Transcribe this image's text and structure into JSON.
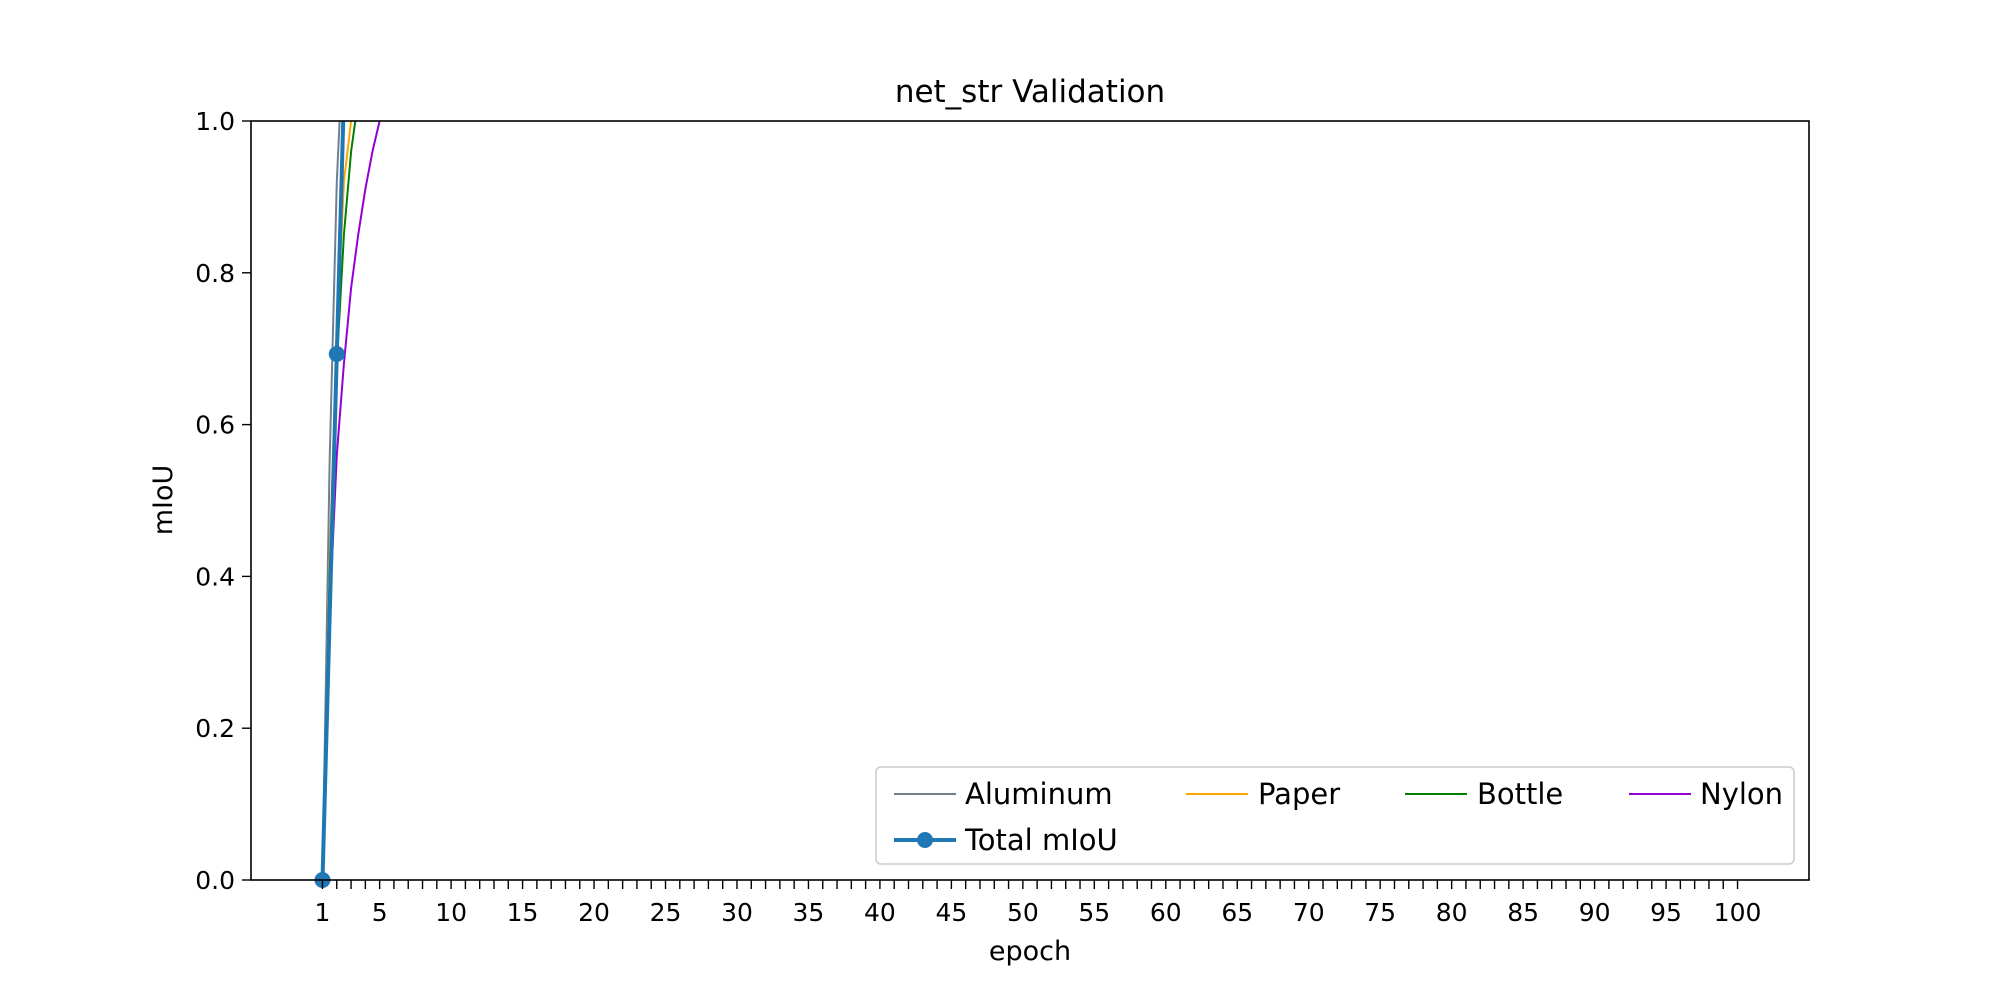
{
  "chart_data": {
    "type": "line",
    "title": "net_str Validation",
    "xlabel": "epoch",
    "ylabel": "mIoU",
    "xlim": [
      -4,
      105
    ],
    "ylim": [
      0.0,
      1.0
    ],
    "x_major_ticks": [
      1,
      5,
      10,
      15,
      20,
      25,
      30,
      35,
      40,
      45,
      50,
      55,
      60,
      65,
      70,
      75,
      80,
      85,
      90,
      95,
      100
    ],
    "x_minor_ticks": "every integer epoch from 1 to 100",
    "y_ticks": [
      0.0,
      0.2,
      0.4,
      0.6,
      0.8,
      1.0
    ],
    "y_tick_labels": [
      "0.0",
      "0.2",
      "0.4",
      "0.6",
      "0.8",
      "1.0"
    ],
    "grid": false,
    "legend_position": "lower-right",
    "legend_columns": 4,
    "series": [
      {
        "name": "Aluminum",
        "color": "#708090",
        "marker": "none",
        "x": [
          1,
          1.5,
          2,
          2.2
        ],
        "y": [
          0.0,
          0.55,
          0.92,
          1.0
        ]
      },
      {
        "name": "Paper",
        "color": "#ffa500",
        "marker": "none",
        "x": [
          1,
          1.5,
          2,
          2.5,
          3
        ],
        "y": [
          0.0,
          0.42,
          0.72,
          0.92,
          1.0
        ]
      },
      {
        "name": "Bottle",
        "color": "#008000",
        "marker": "none",
        "x": [
          1,
          1.5,
          2,
          2.5,
          3,
          3.3
        ],
        "y": [
          0.0,
          0.4,
          0.68,
          0.85,
          0.96,
          1.0
        ]
      },
      {
        "name": "Nylon",
        "color": "#9400d3",
        "marker": "none",
        "x": [
          1,
          1.5,
          2,
          2.5,
          3,
          3.5,
          4,
          4.5,
          5
        ],
        "y": [
          0.0,
          0.35,
          0.56,
          0.68,
          0.78,
          0.85,
          0.91,
          0.96,
          1.0
        ]
      },
      {
        "name": "Total mIoU",
        "color": "#1f77b4",
        "marker": "circle",
        "x": [
          1,
          2,
          2.45
        ],
        "y": [
          0.0,
          0.693,
          1.0
        ]
      }
    ]
  }
}
